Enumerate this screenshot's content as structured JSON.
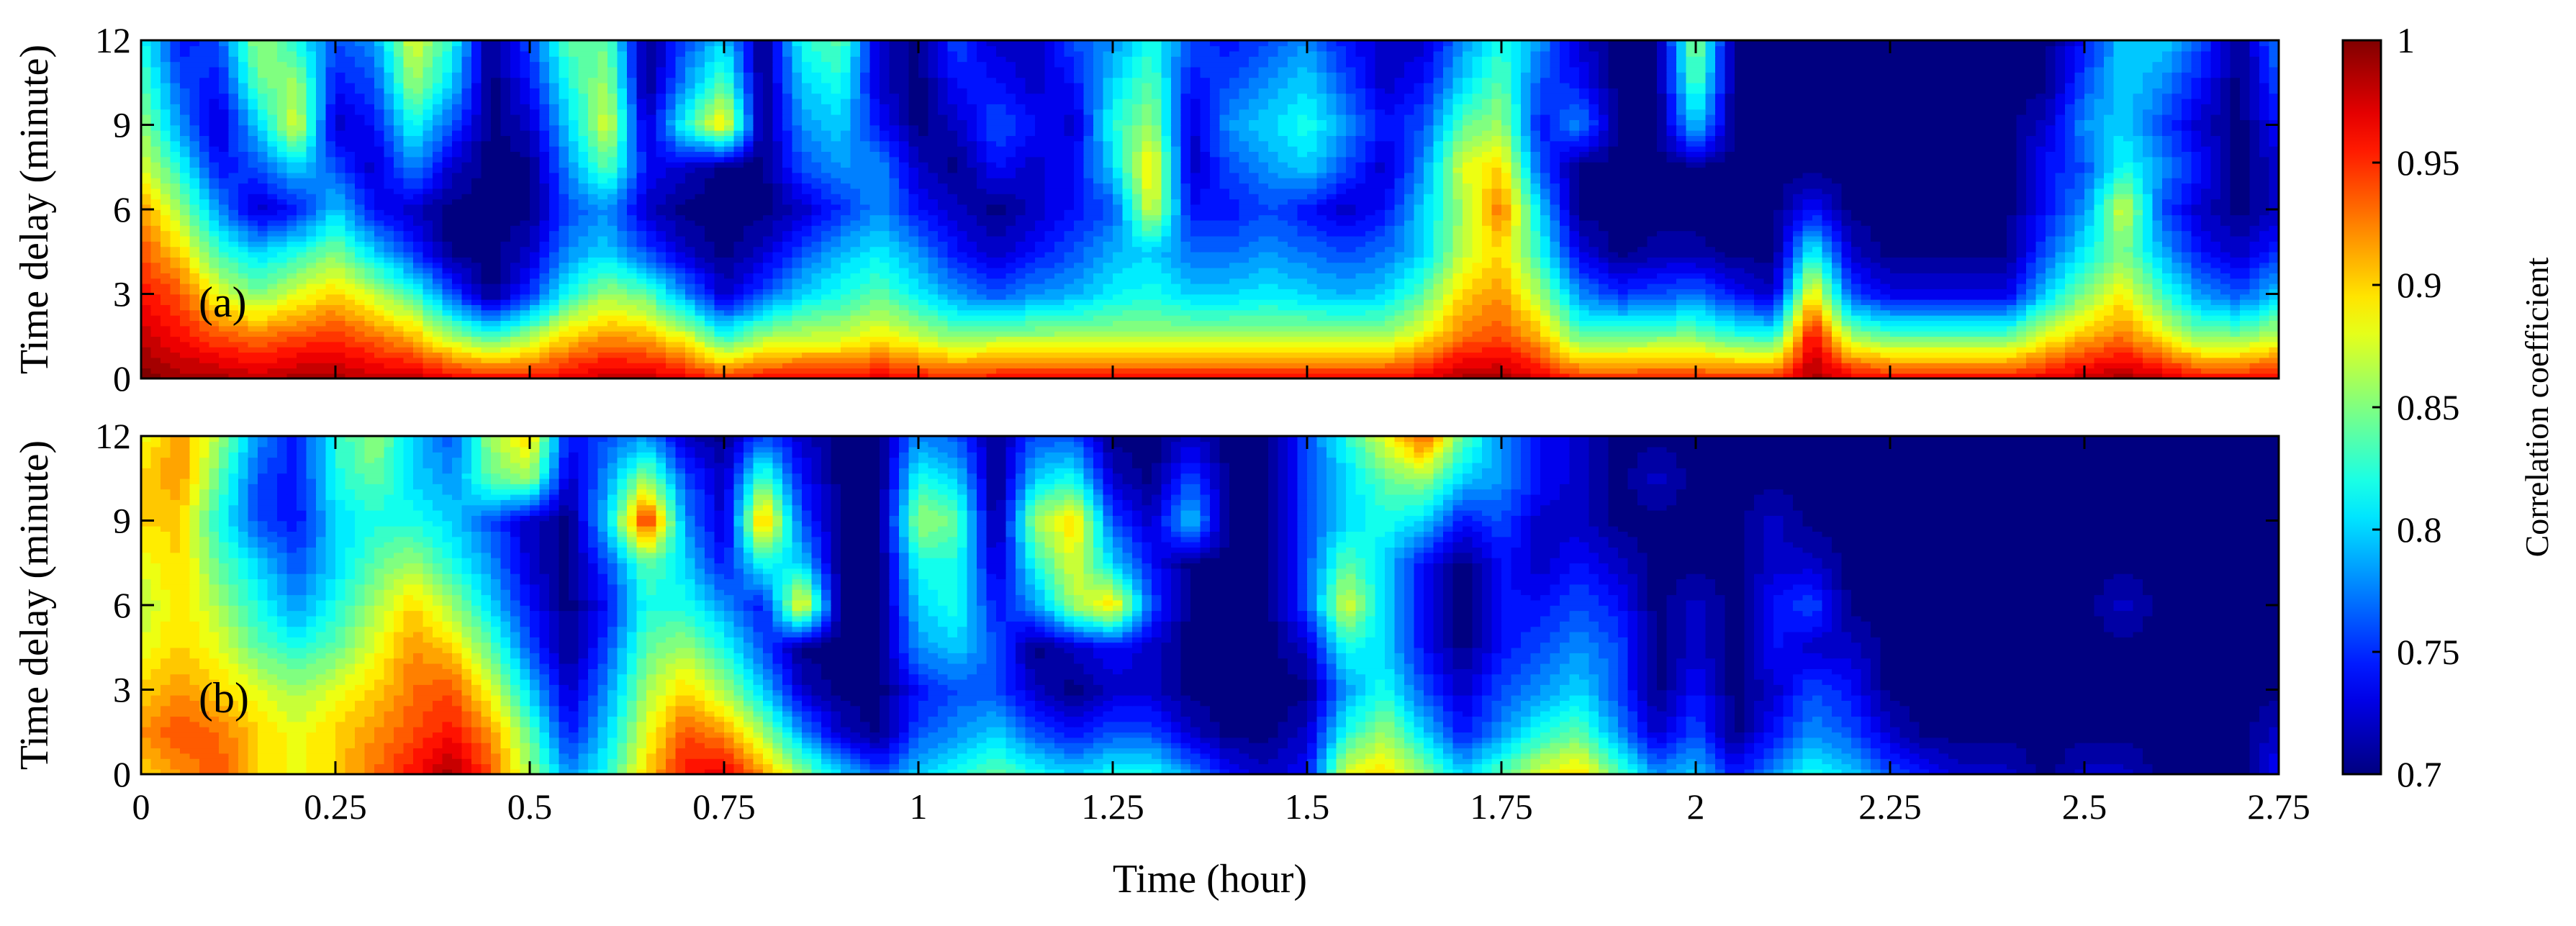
{
  "chart_data": [
    {
      "type": "heatmap",
      "panel_label": "(a)",
      "xlabel": "",
      "ylabel": "Time delay (minute)",
      "xlim": [
        0,
        2.75
      ],
      "ylim": [
        0,
        12
      ],
      "x_ticks": [
        0,
        0.25,
        0.5,
        0.75,
        1,
        1.25,
        1.5,
        1.75,
        2,
        2.25,
        2.5,
        2.75
      ],
      "y_ticks": [
        0,
        3,
        6,
        9,
        12
      ],
      "y_tick_labels": [
        "0",
        "3",
        "6",
        "9",
        "12"
      ],
      "x_tick_labels_shown": false,
      "x": [
        0,
        0.05,
        0.1,
        0.15,
        0.2,
        0.25,
        0.3,
        0.35,
        0.4,
        0.45,
        0.5,
        0.55,
        0.6,
        0.65,
        0.7,
        0.75,
        0.8,
        0.85,
        0.9,
        0.95,
        1,
        1.05,
        1.1,
        1.15,
        1.2,
        1.25,
        1.3,
        1.35,
        1.4,
        1.45,
        1.5,
        1.55,
        1.6,
        1.65,
        1.7,
        1.75,
        1.8,
        1.85,
        1.9,
        1.95,
        2,
        2.05,
        2.1,
        2.15,
        2.2,
        2.25,
        2.3,
        2.35,
        2.4,
        2.45,
        2.5,
        2.55,
        2.6,
        2.65,
        2.7,
        2.75
      ],
      "y": [
        0,
        1.5,
        3,
        4.5,
        6,
        7.5,
        9,
        10.5,
        12
      ],
      "z": [
        [
          1.0,
          0.99,
          0.99,
          0.98,
          0.99,
          0.99,
          0.98,
          0.98,
          0.97,
          0.96,
          0.96,
          0.97,
          0.98,
          0.98,
          0.97,
          0.95,
          0.96,
          0.96,
          0.96,
          0.97,
          0.96,
          0.95,
          0.96,
          0.96,
          0.96,
          0.96,
          0.96,
          0.96,
          0.96,
          0.96,
          0.96,
          0.96,
          0.96,
          0.97,
          0.99,
          0.99,
          0.97,
          0.95,
          0.95,
          0.95,
          0.95,
          0.95,
          0.95,
          0.99,
          0.97,
          0.96,
          0.96,
          0.96,
          0.96,
          0.97,
          0.98,
          0.99,
          0.98,
          0.96,
          0.96,
          0.97
        ],
        [
          0.98,
          0.96,
          0.94,
          0.93,
          0.94,
          0.95,
          0.93,
          0.91,
          0.86,
          0.83,
          0.86,
          0.9,
          0.92,
          0.91,
          0.88,
          0.82,
          0.86,
          0.87,
          0.87,
          0.89,
          0.87,
          0.85,
          0.86,
          0.86,
          0.86,
          0.86,
          0.86,
          0.86,
          0.86,
          0.86,
          0.86,
          0.86,
          0.86,
          0.89,
          0.93,
          0.94,
          0.91,
          0.84,
          0.84,
          0.85,
          0.85,
          0.83,
          0.82,
          0.97,
          0.86,
          0.84,
          0.84,
          0.84,
          0.84,
          0.88,
          0.91,
          0.93,
          0.89,
          0.85,
          0.85,
          0.87
        ],
        [
          0.96,
          0.94,
          0.88,
          0.85,
          0.88,
          0.9,
          0.87,
          0.83,
          0.76,
          0.7,
          0.75,
          0.82,
          0.86,
          0.84,
          0.78,
          0.72,
          0.76,
          0.8,
          0.82,
          0.84,
          0.81,
          0.78,
          0.76,
          0.78,
          0.79,
          0.81,
          0.82,
          0.8,
          0.8,
          0.81,
          0.8,
          0.79,
          0.8,
          0.84,
          0.9,
          0.92,
          0.86,
          0.78,
          0.75,
          0.76,
          0.77,
          0.74,
          0.72,
          0.9,
          0.76,
          0.73,
          0.73,
          0.73,
          0.73,
          0.8,
          0.85,
          0.89,
          0.83,
          0.78,
          0.76,
          0.8
        ],
        [
          0.94,
          0.9,
          0.83,
          0.8,
          0.82,
          0.85,
          0.8,
          0.75,
          0.7,
          0.7,
          0.72,
          0.78,
          0.8,
          0.76,
          0.72,
          0.7,
          0.72,
          0.76,
          0.79,
          0.81,
          0.78,
          0.74,
          0.72,
          0.74,
          0.76,
          0.79,
          0.8,
          0.77,
          0.77,
          0.78,
          0.77,
          0.76,
          0.77,
          0.8,
          0.87,
          0.9,
          0.82,
          0.73,
          0.7,
          0.71,
          0.71,
          0.7,
          0.7,
          0.82,
          0.72,
          0.7,
          0.7,
          0.7,
          0.7,
          0.76,
          0.81,
          0.85,
          0.79,
          0.74,
          0.72,
          0.75
        ],
        [
          0.92,
          0.86,
          0.78,
          0.72,
          0.74,
          0.8,
          0.74,
          0.72,
          0.7,
          0.7,
          0.7,
          0.76,
          0.78,
          0.72,
          0.7,
          0.7,
          0.7,
          0.72,
          0.75,
          0.78,
          0.74,
          0.72,
          0.7,
          0.72,
          0.74,
          0.76,
          0.88,
          0.74,
          0.74,
          0.76,
          0.74,
          0.72,
          0.74,
          0.8,
          0.86,
          0.93,
          0.8,
          0.7,
          0.7,
          0.7,
          0.7,
          0.7,
          0.7,
          0.74,
          0.7,
          0.7,
          0.7,
          0.7,
          0.7,
          0.74,
          0.78,
          0.88,
          0.76,
          0.72,
          0.7,
          0.72
        ],
        [
          0.88,
          0.82,
          0.74,
          0.76,
          0.8,
          0.76,
          0.72,
          0.78,
          0.72,
          0.7,
          0.7,
          0.78,
          0.84,
          0.74,
          0.72,
          0.7,
          0.7,
          0.76,
          0.78,
          0.78,
          0.72,
          0.7,
          0.74,
          0.72,
          0.74,
          0.8,
          0.9,
          0.72,
          0.76,
          0.78,
          0.8,
          0.76,
          0.72,
          0.78,
          0.88,
          0.9,
          0.76,
          0.7,
          0.7,
          0.7,
          0.7,
          0.7,
          0.7,
          0.7,
          0.7,
          0.7,
          0.7,
          0.7,
          0.7,
          0.74,
          0.76,
          0.82,
          0.78,
          0.74,
          0.7,
          0.72
        ],
        [
          0.86,
          0.78,
          0.72,
          0.8,
          0.88,
          0.72,
          0.74,
          0.82,
          0.76,
          0.7,
          0.72,
          0.8,
          0.88,
          0.72,
          0.82,
          0.9,
          0.7,
          0.78,
          0.8,
          0.74,
          0.7,
          0.72,
          0.76,
          0.74,
          0.72,
          0.82,
          0.86,
          0.72,
          0.78,
          0.8,
          0.82,
          0.78,
          0.74,
          0.76,
          0.84,
          0.86,
          0.74,
          0.78,
          0.7,
          0.7,
          0.8,
          0.7,
          0.7,
          0.7,
          0.7,
          0.7,
          0.7,
          0.7,
          0.7,
          0.72,
          0.78,
          0.8,
          0.76,
          0.72,
          0.7,
          0.74
        ],
        [
          0.84,
          0.76,
          0.74,
          0.84,
          0.86,
          0.74,
          0.76,
          0.86,
          0.8,
          0.7,
          0.74,
          0.82,
          0.86,
          0.7,
          0.78,
          0.84,
          0.7,
          0.8,
          0.82,
          0.72,
          0.7,
          0.74,
          0.74,
          0.72,
          0.74,
          0.8,
          0.84,
          0.74,
          0.76,
          0.78,
          0.8,
          0.76,
          0.72,
          0.74,
          0.8,
          0.84,
          0.76,
          0.74,
          0.7,
          0.7,
          0.84,
          0.7,
          0.7,
          0.7,
          0.7,
          0.7,
          0.7,
          0.7,
          0.7,
          0.7,
          0.76,
          0.8,
          0.78,
          0.74,
          0.7,
          0.76
        ],
        [
          0.82,
          0.74,
          0.76,
          0.86,
          0.82,
          0.76,
          0.78,
          0.88,
          0.82,
          0.7,
          0.76,
          0.84,
          0.84,
          0.7,
          0.76,
          0.8,
          0.7,
          0.82,
          0.84,
          0.72,
          0.7,
          0.76,
          0.72,
          0.72,
          0.76,
          0.78,
          0.82,
          0.76,
          0.74,
          0.76,
          0.78,
          0.74,
          0.72,
          0.72,
          0.78,
          0.82,
          0.78,
          0.72,
          0.7,
          0.7,
          0.86,
          0.7,
          0.7,
          0.7,
          0.7,
          0.7,
          0.7,
          0.7,
          0.7,
          0.7,
          0.74,
          0.8,
          0.8,
          0.76,
          0.7,
          0.78
        ]
      ]
    },
    {
      "type": "heatmap",
      "panel_label": "(b)",
      "xlabel": "Time (hour)",
      "ylabel": "Time delay (minute)",
      "xlim": [
        0,
        2.75
      ],
      "ylim": [
        0,
        12
      ],
      "x_ticks": [
        0,
        0.25,
        0.5,
        0.75,
        1,
        1.25,
        1.5,
        1.75,
        2,
        2.25,
        2.5,
        2.75
      ],
      "x_tick_labels": [
        "0",
        "0.25",
        "0.5",
        "0.75",
        "1",
        "1.25",
        "1.5",
        "1.75",
        "2",
        "2.25",
        "2.5",
        "2.75"
      ],
      "y_ticks": [
        0,
        3,
        6,
        9,
        12
      ],
      "y_tick_labels": [
        "0",
        "3",
        "6",
        "9",
        "12"
      ],
      "x": [
        0,
        0.05,
        0.1,
        0.15,
        0.2,
        0.25,
        0.3,
        0.35,
        0.4,
        0.45,
        0.5,
        0.55,
        0.6,
        0.65,
        0.7,
        0.75,
        0.8,
        0.85,
        0.9,
        0.95,
        1,
        1.05,
        1.1,
        1.15,
        1.2,
        1.25,
        1.3,
        1.35,
        1.4,
        1.45,
        1.5,
        1.55,
        1.6,
        1.65,
        1.7,
        1.75,
        1.8,
        1.85,
        1.9,
        1.95,
        2,
        2.05,
        2.1,
        2.15,
        2.2,
        2.25,
        2.3,
        2.35,
        2.4,
        2.45,
        2.5,
        2.55,
        2.6,
        2.65,
        2.7,
        2.75
      ],
      "y": [
        0,
        1.5,
        3,
        4.5,
        6,
        7.5,
        9,
        10.5,
        12
      ],
      "z": [
        [
          0.9,
          0.92,
          0.94,
          0.9,
          0.88,
          0.9,
          0.93,
          0.96,
          0.99,
          0.94,
          0.86,
          0.78,
          0.82,
          0.9,
          0.96,
          0.97,
          0.92,
          0.86,
          0.8,
          0.76,
          0.8,
          0.82,
          0.84,
          0.82,
          0.8,
          0.82,
          0.82,
          0.78,
          0.74,
          0.72,
          0.74,
          0.88,
          0.9,
          0.86,
          0.8,
          0.84,
          0.88,
          0.9,
          0.84,
          0.78,
          0.8,
          0.74,
          0.78,
          0.82,
          0.8,
          0.76,
          0.74,
          0.72,
          0.72,
          0.7,
          0.72,
          0.72,
          0.7,
          0.7,
          0.7,
          0.74
        ],
        [
          0.92,
          0.94,
          0.93,
          0.9,
          0.88,
          0.9,
          0.92,
          0.94,
          0.96,
          0.92,
          0.84,
          0.74,
          0.8,
          0.88,
          0.94,
          0.92,
          0.86,
          0.78,
          0.72,
          0.7,
          0.76,
          0.78,
          0.8,
          0.76,
          0.74,
          0.76,
          0.76,
          0.72,
          0.7,
          0.7,
          0.72,
          0.82,
          0.86,
          0.8,
          0.74,
          0.78,
          0.82,
          0.84,
          0.78,
          0.72,
          0.76,
          0.7,
          0.74,
          0.78,
          0.76,
          0.72,
          0.7,
          0.7,
          0.7,
          0.7,
          0.7,
          0.7,
          0.7,
          0.7,
          0.7,
          0.72
        ],
        [
          0.9,
          0.92,
          0.9,
          0.88,
          0.86,
          0.88,
          0.9,
          0.93,
          0.94,
          0.88,
          0.8,
          0.72,
          0.78,
          0.86,
          0.9,
          0.86,
          0.8,
          0.72,
          0.7,
          0.7,
          0.74,
          0.76,
          0.76,
          0.72,
          0.7,
          0.72,
          0.72,
          0.7,
          0.7,
          0.7,
          0.7,
          0.78,
          0.82,
          0.76,
          0.72,
          0.76,
          0.78,
          0.8,
          0.76,
          0.7,
          0.74,
          0.7,
          0.72,
          0.76,
          0.74,
          0.7,
          0.7,
          0.7,
          0.7,
          0.7,
          0.7,
          0.7,
          0.7,
          0.7,
          0.7,
          0.7
        ],
        [
          0.88,
          0.9,
          0.88,
          0.84,
          0.82,
          0.84,
          0.88,
          0.92,
          0.9,
          0.84,
          0.76,
          0.7,
          0.76,
          0.84,
          0.86,
          0.82,
          0.76,
          0.7,
          0.7,
          0.7,
          0.78,
          0.8,
          0.76,
          0.7,
          0.72,
          0.74,
          0.72,
          0.7,
          0.7,
          0.7,
          0.72,
          0.82,
          0.8,
          0.74,
          0.7,
          0.74,
          0.76,
          0.78,
          0.76,
          0.7,
          0.72,
          0.7,
          0.74,
          0.72,
          0.72,
          0.7,
          0.7,
          0.7,
          0.7,
          0.7,
          0.7,
          0.7,
          0.7,
          0.7,
          0.7,
          0.7
        ],
        [
          0.86,
          0.9,
          0.86,
          0.82,
          0.78,
          0.82,
          0.86,
          0.9,
          0.86,
          0.8,
          0.74,
          0.7,
          0.74,
          0.82,
          0.82,
          0.78,
          0.74,
          0.9,
          0.7,
          0.7,
          0.8,
          0.82,
          0.74,
          0.78,
          0.86,
          0.9,
          0.76,
          0.7,
          0.7,
          0.7,
          0.76,
          0.88,
          0.8,
          0.74,
          0.7,
          0.74,
          0.74,
          0.76,
          0.74,
          0.7,
          0.72,
          0.7,
          0.74,
          0.76,
          0.7,
          0.7,
          0.7,
          0.7,
          0.7,
          0.7,
          0.7,
          0.72,
          0.7,
          0.7,
          0.7,
          0.7
        ],
        [
          0.88,
          0.9,
          0.84,
          0.8,
          0.76,
          0.8,
          0.84,
          0.86,
          0.82,
          0.78,
          0.72,
          0.7,
          0.76,
          0.84,
          0.8,
          0.74,
          0.82,
          0.8,
          0.7,
          0.7,
          0.82,
          0.82,
          0.72,
          0.82,
          0.88,
          0.8,
          0.74,
          0.7,
          0.7,
          0.7,
          0.76,
          0.84,
          0.8,
          0.74,
          0.7,
          0.74,
          0.72,
          0.74,
          0.72,
          0.7,
          0.7,
          0.7,
          0.72,
          0.72,
          0.7,
          0.7,
          0.7,
          0.7,
          0.7,
          0.7,
          0.7,
          0.7,
          0.7,
          0.7,
          0.7,
          0.7
        ],
        [
          0.9,
          0.9,
          0.82,
          0.76,
          0.74,
          0.8,
          0.82,
          0.82,
          0.8,
          0.76,
          0.72,
          0.7,
          0.8,
          0.96,
          0.78,
          0.72,
          0.92,
          0.76,
          0.7,
          0.7,
          0.86,
          0.84,
          0.7,
          0.86,
          0.9,
          0.76,
          0.72,
          0.8,
          0.7,
          0.7,
          0.76,
          0.8,
          0.82,
          0.8,
          0.74,
          0.76,
          0.72,
          0.72,
          0.7,
          0.7,
          0.7,
          0.7,
          0.72,
          0.7,
          0.7,
          0.7,
          0.7,
          0.7,
          0.7,
          0.7,
          0.7,
          0.7,
          0.7,
          0.7,
          0.7,
          0.7
        ],
        [
          0.9,
          0.92,
          0.84,
          0.76,
          0.74,
          0.82,
          0.84,
          0.8,
          0.78,
          0.84,
          0.86,
          0.72,
          0.78,
          0.86,
          0.76,
          0.72,
          0.84,
          0.74,
          0.7,
          0.7,
          0.82,
          0.8,
          0.7,
          0.8,
          0.82,
          0.72,
          0.7,
          0.76,
          0.7,
          0.7,
          0.76,
          0.8,
          0.84,
          0.86,
          0.8,
          0.78,
          0.74,
          0.72,
          0.7,
          0.72,
          0.7,
          0.7,
          0.7,
          0.7,
          0.7,
          0.7,
          0.7,
          0.7,
          0.7,
          0.7,
          0.7,
          0.7,
          0.7,
          0.7,
          0.7,
          0.7
        ],
        [
          0.88,
          0.92,
          0.86,
          0.78,
          0.74,
          0.82,
          0.86,
          0.8,
          0.76,
          0.86,
          0.9,
          0.74,
          0.76,
          0.78,
          0.72,
          0.7,
          0.76,
          0.72,
          0.7,
          0.7,
          0.78,
          0.76,
          0.7,
          0.76,
          0.76,
          0.7,
          0.7,
          0.72,
          0.7,
          0.7,
          0.76,
          0.82,
          0.88,
          0.94,
          0.84,
          0.78,
          0.74,
          0.72,
          0.7,
          0.7,
          0.7,
          0.7,
          0.7,
          0.7,
          0.7,
          0.7,
          0.7,
          0.7,
          0.7,
          0.7,
          0.7,
          0.7,
          0.7,
          0.7,
          0.7,
          0.7
        ]
      ]
    }
  ],
  "colorbar": {
    "label": "Correlation coefficient",
    "range": [
      0.7,
      1
    ],
    "ticks": [
      "0.7",
      "0.75",
      "0.8",
      "0.85",
      "0.9",
      "0.95",
      "1"
    ],
    "colormap": "jet"
  }
}
